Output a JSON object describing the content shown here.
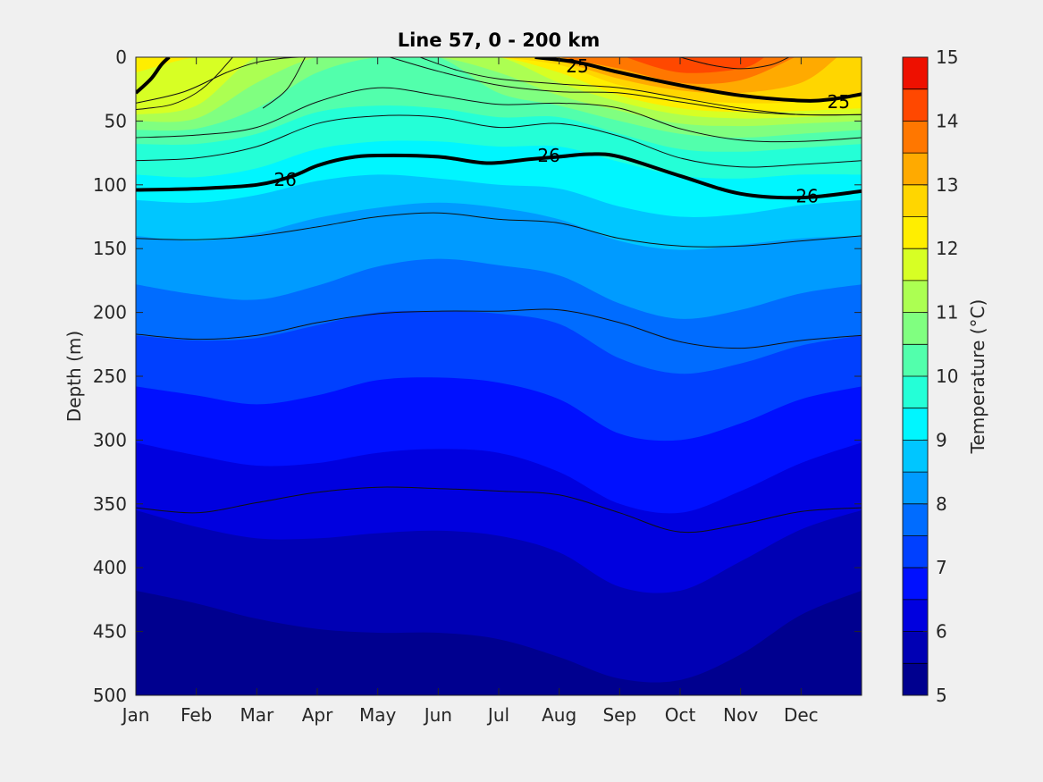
{
  "chart_data": {
    "type": "heatmap",
    "title": "Line 57, 0 - 200 km",
    "xlabel": "",
    "ylabel": "Depth (m)",
    "x_ticks": [
      "Jan",
      "Feb",
      "Mar",
      "Apr",
      "May",
      "Jun",
      "Jul",
      "Aug",
      "Sep",
      "Oct",
      "Nov",
      "Dec"
    ],
    "x_range": [
      0,
      12
    ],
    "y_ticks": [
      0,
      50,
      100,
      150,
      200,
      250,
      300,
      350,
      400,
      450,
      500
    ],
    "y_range": [
      0,
      500
    ],
    "y_reversed": true,
    "colorbar": {
      "label": "Temperature (°C)",
      "range": [
        5,
        15
      ],
      "ticks": [
        5,
        6,
        7,
        8,
        9,
        10,
        11,
        12,
        13,
        14,
        15
      ],
      "step": 0.5,
      "colors": [
        "#00008f",
        "#0000b4",
        "#0000df",
        "#0010ff",
        "#0040ff",
        "#006cff",
        "#009bff",
        "#00c6ff",
        "#00f6ff",
        "#24ffd7",
        "#52ffac",
        "#80ff80",
        "#acff52",
        "#d7ff24",
        "#ffee00",
        "#ffd600",
        "#ffaa00",
        "#ff7700",
        "#ff4800",
        "#ee1000",
        "#c30000"
      ]
    },
    "temperature_isolines": [
      {
        "temp": 5.5,
        "x": [
          0,
          1,
          2,
          3,
          4,
          5,
          6,
          7,
          8,
          9,
          10,
          11,
          12
        ],
        "depth": [
          418,
          428,
          440,
          448,
          451,
          451,
          456,
          470,
          487,
          488,
          468,
          437,
          418
        ]
      },
      {
        "temp": 6.0,
        "x": [
          0,
          1,
          2,
          3,
          4,
          5,
          6,
          7,
          8,
          9,
          10,
          11,
          12
        ],
        "depth": [
          355,
          368,
          377,
          377,
          373,
          371,
          375,
          388,
          415,
          418,
          395,
          370,
          355
        ]
      },
      {
        "temp": 6.5,
        "x": [
          0,
          1,
          2,
          3,
          4,
          5,
          6,
          7,
          8,
          9,
          10,
          11,
          12
        ],
        "depth": [
          302,
          312,
          320,
          318,
          310,
          307,
          310,
          325,
          350,
          357,
          340,
          318,
          302
        ]
      },
      {
        "temp": 7.0,
        "x": [
          0,
          1,
          2,
          3,
          4,
          5,
          6,
          7,
          8,
          9,
          10,
          11,
          12
        ],
        "depth": [
          258,
          265,
          272,
          265,
          253,
          251,
          255,
          268,
          295,
          300,
          287,
          268,
          258
        ]
      },
      {
        "temp": 7.5,
        "x": [
          0,
          1,
          2,
          3,
          4,
          5,
          6,
          7,
          8,
          9,
          10,
          11,
          12
        ],
        "depth": [
          218,
          222,
          220,
          210,
          200,
          199,
          201,
          209,
          236,
          248,
          240,
          226,
          218
        ]
      },
      {
        "temp": 8.0,
        "x": [
          0,
          1,
          2,
          3,
          4,
          5,
          6,
          7,
          8,
          9,
          10,
          11,
          12
        ],
        "depth": [
          178,
          186,
          190,
          179,
          164,
          158,
          163,
          171,
          193,
          205,
          198,
          185,
          178
        ]
      },
      {
        "temp": 8.5,
        "x": [
          0,
          1,
          2,
          3,
          4,
          5,
          6,
          7,
          8,
          9,
          10,
          11,
          12
        ],
        "depth": [
          140,
          144,
          138,
          126,
          118,
          114,
          118,
          127,
          144,
          151,
          147,
          142,
          140
        ]
      },
      {
        "temp": 9.0,
        "x": [
          0,
          1,
          2,
          3,
          4,
          5,
          6,
          7,
          8,
          9,
          10,
          11,
          12
        ],
        "depth": [
          112,
          114,
          108,
          97,
          92,
          95,
          100,
          103,
          117,
          125,
          123,
          116,
          112
        ]
      },
      {
        "temp": 9.5,
        "x": [
          0,
          1,
          2,
          3,
          4,
          5,
          6,
          7,
          8,
          9,
          10,
          11,
          12
        ],
        "depth": [
          92,
          94,
          87,
          72,
          66,
          66,
          70,
          70,
          82,
          93,
          95,
          92,
          92
        ]
      },
      {
        "temp": 10.0,
        "x": [
          0,
          1,
          2,
          3,
          4,
          5,
          6,
          7,
          8,
          9,
          10,
          11,
          12
        ],
        "depth": [
          68,
          68,
          60,
          43,
          38,
          40,
          47,
          47,
          60,
          72,
          74,
          71,
          68
        ]
      },
      {
        "temp": 10.5,
        "x": [
          0,
          1,
          2,
          3,
          4,
          5,
          6,
          7,
          8,
          9,
          10,
          11,
          12
        ],
        "depth": [
          57,
          56,
          40,
          12,
          0,
          0,
          28,
          38,
          50,
          60,
          63,
          60,
          57
        ]
      },
      {
        "temp": 11.0,
        "x": [
          0,
          1,
          2,
          3,
          4,
          5,
          6,
          7,
          8,
          9,
          10,
          11,
          12
        ],
        "depth": [
          50,
          48,
          20,
          0,
          0,
          0,
          12,
          30,
          42,
          52,
          54,
          52,
          50
        ]
      },
      {
        "temp": 11.5,
        "x": [
          0,
          1,
          2,
          3,
          4,
          5,
          6,
          7,
          8,
          9,
          10,
          11,
          12
        ],
        "depth": [
          45,
          38,
          0,
          0,
          0,
          0,
          0,
          20,
          35,
          45,
          48,
          47,
          45
        ]
      },
      {
        "temp": 12.0,
        "x": [
          0,
          1,
          2,
          3,
          4,
          5,
          6,
          7,
          8,
          9,
          10,
          11,
          12
        ],
        "depth": [
          12,
          0,
          0,
          0,
          0,
          0,
          0,
          12,
          30,
          40,
          43,
          42,
          40
        ]
      },
      {
        "temp": 12.5,
        "x": [
          6,
          7,
          8,
          9,
          10,
          11,
          12
        ],
        "depth": [
          0,
          6,
          22,
          32,
          36,
          35,
          30
        ]
      },
      {
        "temp": 13.0,
        "x": [
          6.5,
          7,
          8,
          9,
          10,
          11,
          11.6
        ],
        "depth": [
          0,
          3,
          17,
          26,
          28,
          20,
          0
        ]
      },
      {
        "temp": 13.5,
        "x": [
          7,
          8,
          9,
          10,
          10.9
        ],
        "depth": [
          0,
          9,
          20,
          18,
          0
        ]
      },
      {
        "temp": 14.0,
        "x": [
          8.1,
          9,
          10,
          10.4
        ],
        "depth": [
          0,
          12,
          9,
          0
        ]
      }
    ],
    "thin_contours": [
      {
        "x": [
          0,
          1,
          2,
          3,
          4,
          5,
          6,
          7,
          8,
          9,
          10,
          11,
          12
        ],
        "depth": [
          353,
          357,
          349,
          341,
          337,
          338,
          340,
          343,
          357,
          372,
          366,
          356,
          353
        ]
      },
      {
        "x": [
          0,
          1,
          2,
          3,
          4,
          5,
          6,
          7,
          8,
          9,
          10,
          11,
          12
        ],
        "depth": [
          217,
          221,
          218,
          208,
          201,
          199,
          199,
          198,
          208,
          223,
          228,
          222,
          218
        ]
      },
      {
        "x": [
          0,
          1,
          2,
          3,
          4,
          5,
          6,
          7,
          8,
          9,
          10,
          11,
          12
        ],
        "depth": [
          142,
          143,
          140,
          133,
          125,
          122,
          127,
          130,
          142,
          148,
          148,
          144,
          140
        ]
      },
      {
        "x": [
          0,
          1,
          2,
          3,
          4,
          5,
          6,
          7,
          8,
          9,
          10,
          11,
          12
        ],
        "depth": [
          81,
          79,
          70,
          52,
          46,
          47,
          55,
          52,
          62,
          79,
          86,
          84,
          81
        ]
      },
      {
        "x": [
          0,
          1,
          2,
          3,
          4,
          5,
          6,
          7,
          8,
          9,
          10,
          11,
          12
        ],
        "depth": [
          63,
          61,
          55,
          35,
          24,
          30,
          37,
          36,
          40,
          56,
          65,
          66,
          63
        ]
      },
      {
        "x": [
          0,
          0.8,
          1.5,
          2,
          2.4,
          2.7
        ],
        "depth": [
          36,
          27,
          12,
          4,
          1,
          0
        ]
      },
      {
        "x": [
          4.7,
          5.3,
          6,
          7,
          8,
          9,
          10,
          11,
          12
        ],
        "depth": [
          0,
          10,
          17,
          21,
          24,
          32,
          40,
          45,
          45
        ]
      },
      {
        "x": [
          4.2,
          5,
          6,
          7,
          8,
          9,
          10,
          11,
          12
        ],
        "depth": [
          0,
          11,
          22,
          27,
          28,
          35,
          42,
          45,
          45
        ]
      },
      {
        "x": [
          1.6,
          1.3,
          1.0,
          0.6,
          0.2,
          0
        ],
        "depth": [
          0,
          16,
          28,
          37,
          40,
          41
        ]
      },
      {
        "x": [
          9,
          9.5,
          10,
          10.5,
          10.8
        ],
        "depth": [
          0,
          6,
          9,
          6,
          0
        ]
      },
      {
        "x": [
          2.8,
          2.5,
          2.1
        ],
        "depth": [
          0,
          25,
          40
        ]
      }
    ],
    "labeled_contours": [
      {
        "label": "25",
        "x": [
          0,
          0.25,
          0.42,
          0.55
        ],
        "depth": [
          28,
          17,
          6,
          0
        ],
        "x2": [
          6.6,
          7.3,
          8,
          9,
          10,
          11,
          11.5,
          12
        ],
        "depth2": [
          0,
          4,
          12,
          22,
          30,
          34,
          33,
          29
        ],
        "labels": [
          {
            "x": 7.3,
            "depth": 7,
            "text": "25"
          },
          {
            "x": 11.62,
            "depth": 35,
            "text": "25"
          }
        ]
      },
      {
        "label": "26",
        "x": [
          0,
          1,
          2,
          2.6,
          3,
          3.5,
          4,
          5,
          5.8,
          6.5,
          7,
          7.5,
          8,
          9,
          10,
          11,
          12
        ],
        "depth": [
          104,
          103,
          100,
          93,
          85,
          79,
          77,
          78,
          83,
          80,
          78,
          76,
          78,
          93,
          107,
          110,
          105
        ],
        "labels": [
          {
            "x": 2.47,
            "depth": 96,
            "text": "26"
          },
          {
            "x": 6.83,
            "depth": 77,
            "text": "26"
          },
          {
            "x": 11.1,
            "depth": 109,
            "text": "26"
          }
        ]
      }
    ]
  }
}
